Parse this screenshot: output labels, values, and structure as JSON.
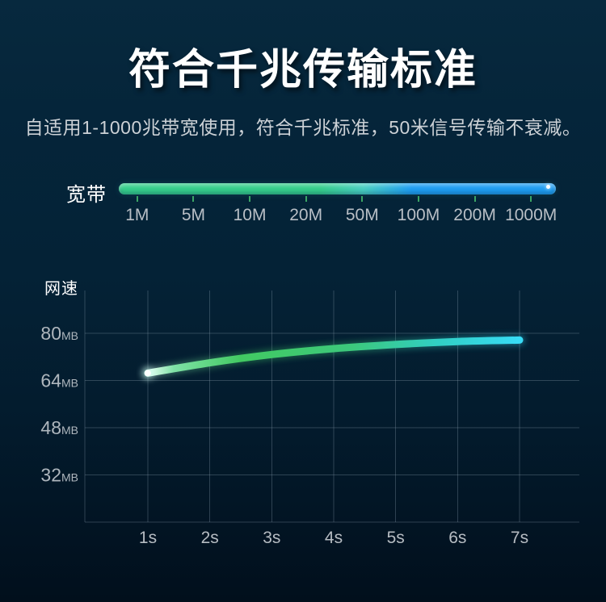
{
  "background": {
    "top": "#07293e",
    "bottom": "#010f1c"
  },
  "header": {
    "title": "符合千兆传输标准",
    "subtitle": "自适用1-1000兆带宽使用，符合千兆标准，50米信号传输不衰减。"
  },
  "bandwidth": {
    "label": "宽带",
    "ticks": [
      "1M",
      "5M",
      "10M",
      "20M",
      "50M",
      "100M",
      "200M",
      "1000M"
    ],
    "bar_colors": {
      "green": "#36ce8b",
      "teal": "#49cfc2",
      "blue": "#1f9ef2"
    },
    "tick_color": "#3aa565"
  },
  "chart_data": {
    "type": "line",
    "title": "网速",
    "x_categories": [
      "1s",
      "2s",
      "3s",
      "4s",
      "5s",
      "6s",
      "7s"
    ],
    "y_ticks": [
      80,
      64,
      48,
      32
    ],
    "y_unit": "MB",
    "ylim": [
      16,
      94
    ],
    "grid": true,
    "grid_color": "rgba(150,170,184,0.30)",
    "legend": "none",
    "series": [
      {
        "name": "网速",
        "values": [
          66.5,
          70,
          72.8,
          74.8,
          76.2,
          77.2,
          77.7
        ]
      }
    ],
    "line_gradient": [
      {
        "offset": 0,
        "color": "#eafff5"
      },
      {
        "offset": 0.07,
        "color": "#7fe2a6"
      },
      {
        "offset": 0.25,
        "color": "#42ca62"
      },
      {
        "offset": 0.55,
        "color": "#3cc87c"
      },
      {
        "offset": 0.78,
        "color": "#31cfc4"
      },
      {
        "offset": 1,
        "color": "#38dcf6"
      }
    ]
  }
}
